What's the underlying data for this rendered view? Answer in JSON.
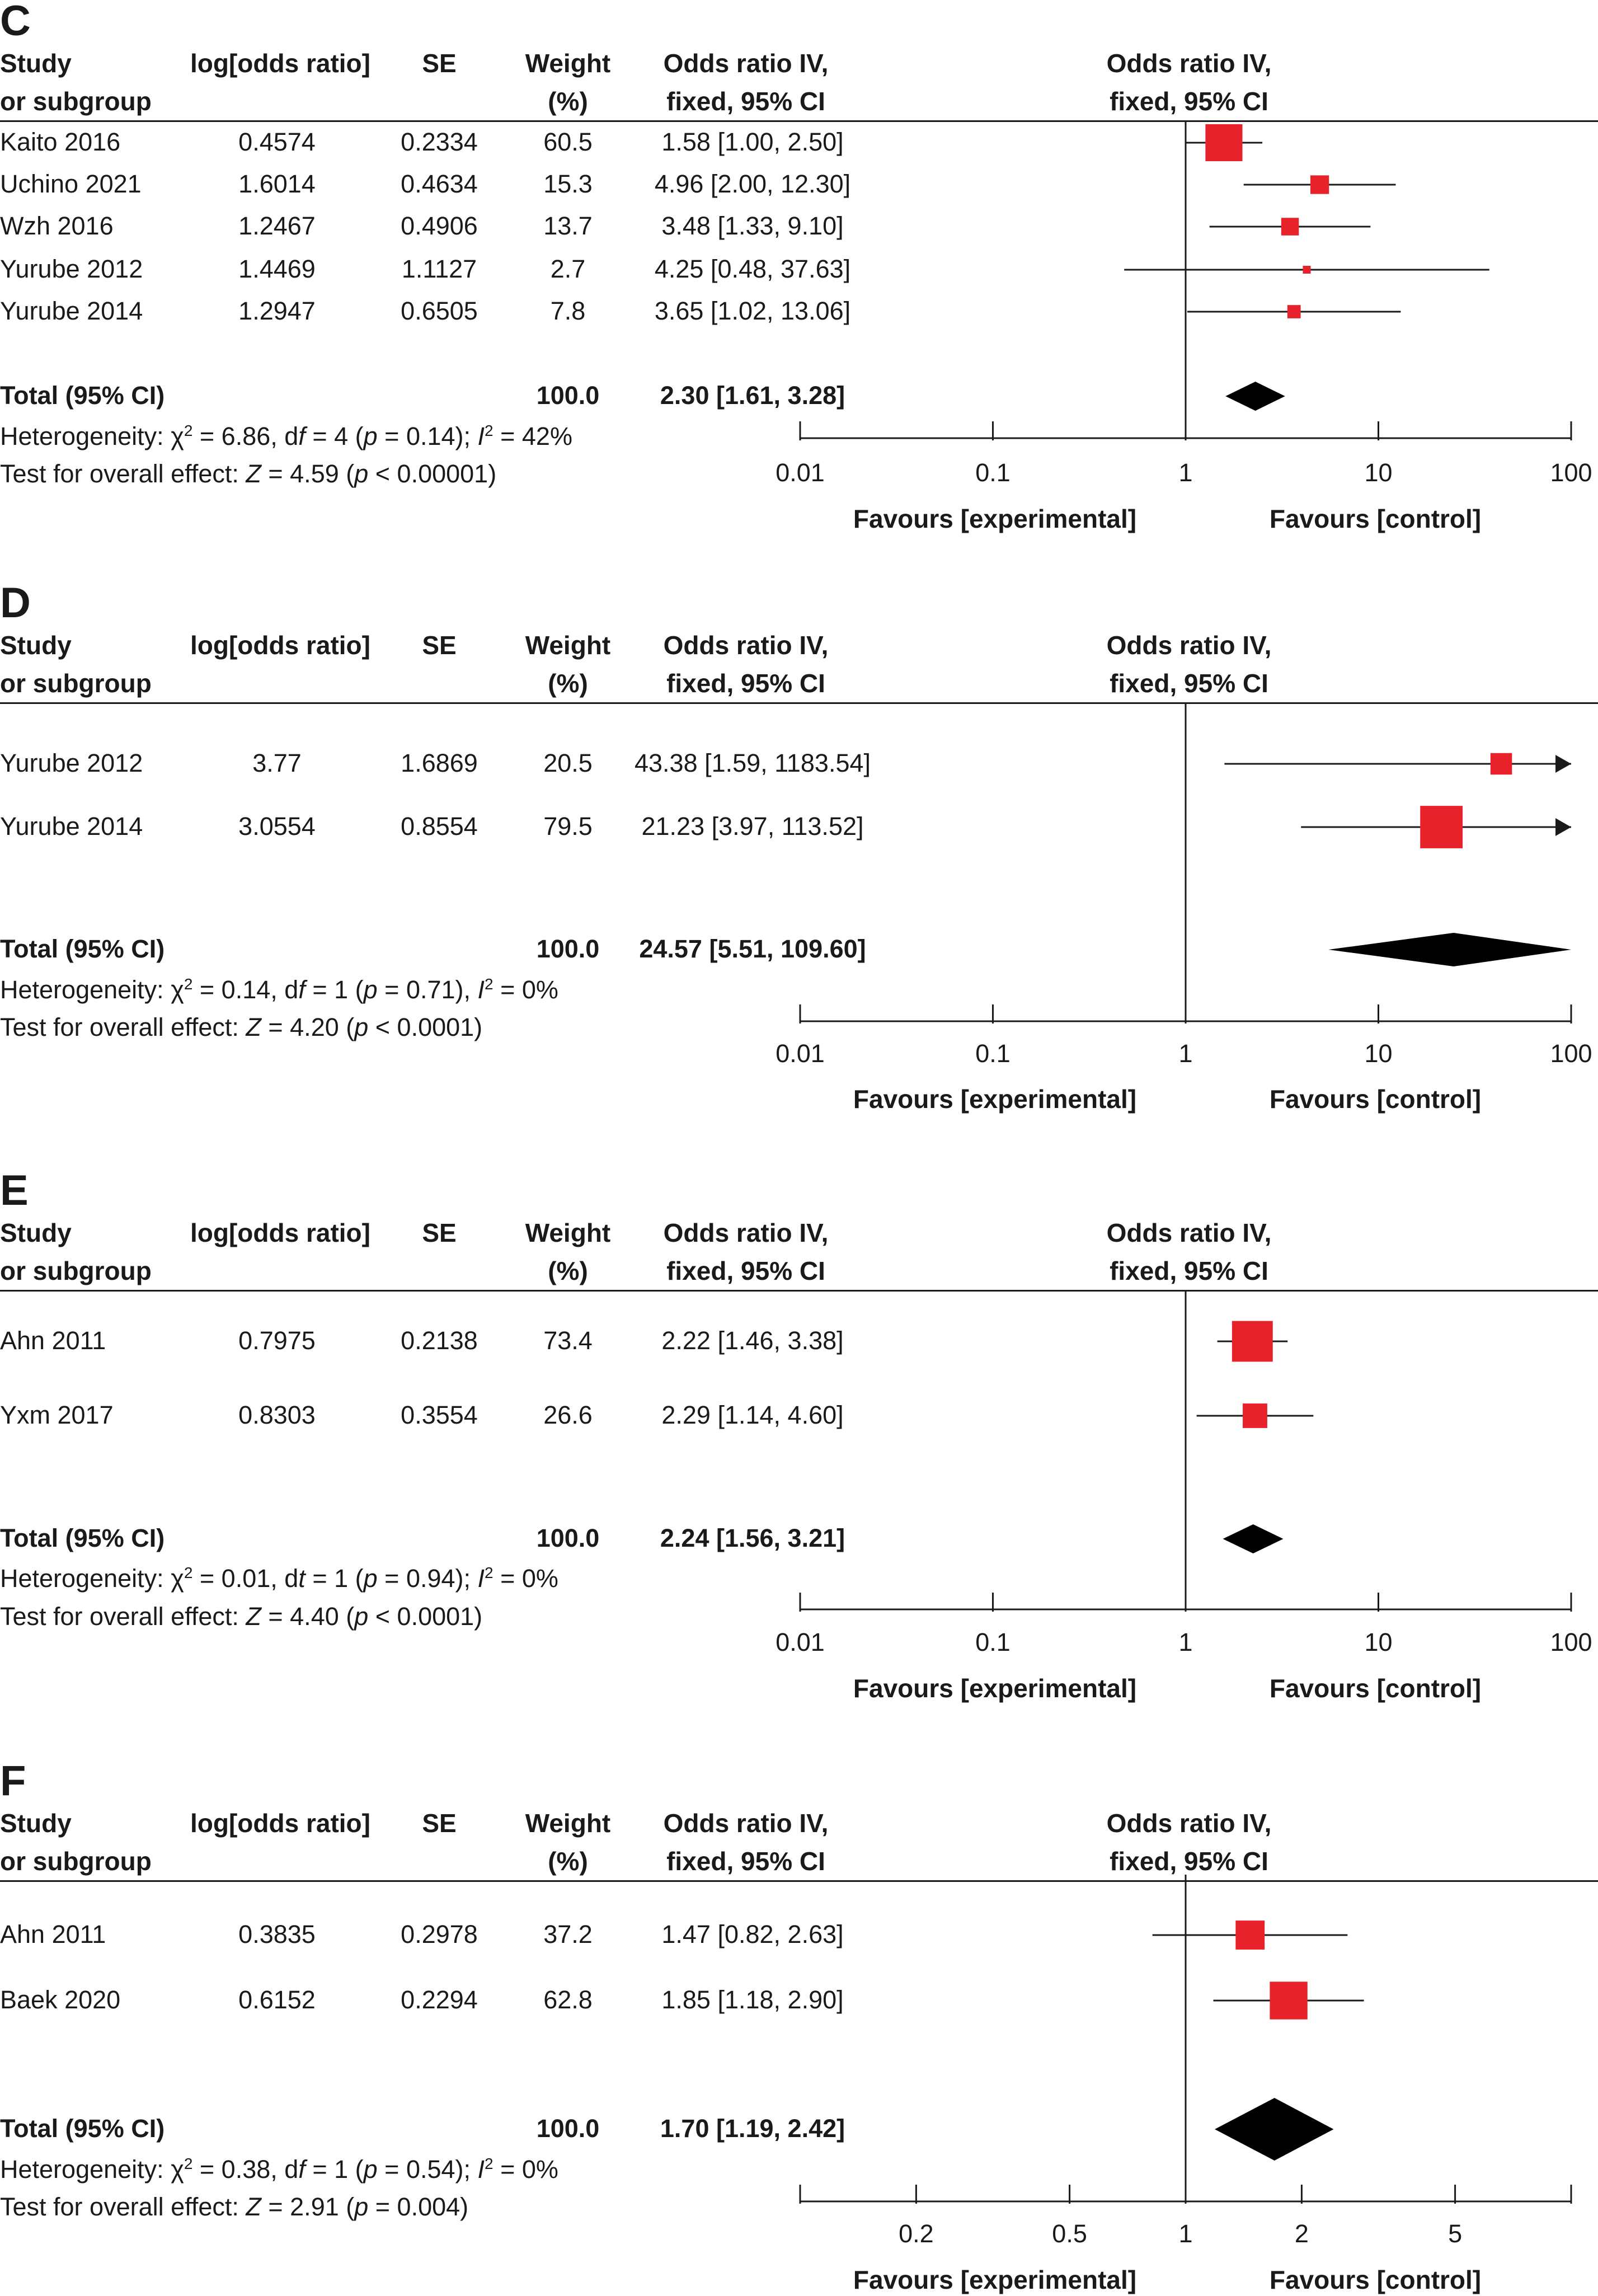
{
  "headers": {
    "study": [
      "Study",
      "or subgroup"
    ],
    "log_or": "log[odds ratio]",
    "se": "SE",
    "weight": [
      "Weight",
      "(%)"
    ],
    "or_text": [
      "Odds ratio IV,",
      "fixed, 95% CI"
    ],
    "or_plot": [
      "Odds ratio IV,",
      "fixed, 95% CI"
    ]
  },
  "favours": {
    "left": "Favours [experimental]",
    "right": "Favours [control]"
  },
  "colors": {
    "study_marker": "#e8222a",
    "diamond": "#000000",
    "line": "#1a1a1a"
  },
  "chart_data": [
    {
      "type": "forest",
      "panel": "C",
      "scale": "log",
      "xlim": [
        0.01,
        100
      ],
      "ticks": [
        0.01,
        0.1,
        1,
        10,
        100
      ],
      "tick_labels": [
        "0.01",
        "0.1",
        "1",
        "10",
        "100"
      ],
      "studies": [
        {
          "name": "Kaito 2016",
          "log_or": "0.4574",
          "se": "0.2334",
          "weight": "60.5",
          "ci_text": "1.58 [1.00, 2.50]",
          "or": 1.58,
          "lo": 1.0,
          "hi": 2.5,
          "w": 60.5
        },
        {
          "name": "Uchino 2021",
          "log_or": "1.6014",
          "se": "0.4634",
          "weight": "15.3",
          "ci_text": "4.96 [2.00, 12.30]",
          "or": 4.96,
          "lo": 2.0,
          "hi": 12.3,
          "w": 15.3
        },
        {
          "name": "Wzh 2016",
          "log_or": "1.2467",
          "se": "0.4906",
          "weight": "13.7",
          "ci_text": "3.48 [1.33, 9.10]",
          "or": 3.48,
          "lo": 1.33,
          "hi": 9.1,
          "w": 13.7
        },
        {
          "name": "Yurube 2012",
          "log_or": "1.4469",
          "se": "1.1127",
          "weight": "2.7",
          "ci_text": "4.25 [0.48, 37.63]",
          "or": 4.25,
          "lo": 0.48,
          "hi": 37.63,
          "w": 2.7
        },
        {
          "name": "Yurube 2014",
          "log_or": "1.2947",
          "se": "0.6505",
          "weight": "7.8",
          "ci_text": "3.65 [1.02, 13.06]",
          "or": 3.65,
          "lo": 1.02,
          "hi": 13.06,
          "w": 7.8
        }
      ],
      "total": {
        "label": "Total (95% CI)",
        "weight": "100.0",
        "ci_text": "2.30 [1.61, 3.28]",
        "or": 2.3,
        "lo": 1.61,
        "hi": 3.28
      },
      "heterogeneity": "Heterogeneity: χ² = 6.86, df = 4 (p = 0.14); I² = 42%",
      "overall": "Test for overall effect: Z = 4.59 (p < 0.00001)"
    },
    {
      "type": "forest",
      "panel": "D",
      "scale": "log",
      "xlim": [
        0.01,
        100
      ],
      "ticks": [
        0.01,
        0.1,
        1,
        10,
        100
      ],
      "tick_labels": [
        "0.01",
        "0.1",
        "1",
        "10",
        "100"
      ],
      "studies": [
        {
          "name": "Yurube 2012",
          "log_or": "3.77",
          "se": "1.6869",
          "weight": "20.5",
          "ci_text": "43.38 [1.59, 1183.54]",
          "or": 43.38,
          "lo": 1.59,
          "hi": 1183.54,
          "w": 20.5
        },
        {
          "name": "Yurube 2014",
          "log_or": "3.0554",
          "se": "0.8554",
          "weight": "79.5",
          "ci_text": "21.23 [3.97, 113.52]",
          "or": 21.23,
          "lo": 3.97,
          "hi": 113.52,
          "w": 79.5
        }
      ],
      "total": {
        "label": "Total (95% CI)",
        "weight": "100.0",
        "ci_text": "24.57 [5.51, 109.60]",
        "or": 24.57,
        "lo": 5.51,
        "hi": 109.6
      },
      "heterogeneity": "Heterogeneity: χ² = 0.14, df = 1 (p = 0.71), I² = 0%",
      "overall": "Test for overall effect: Z = 4.20 (p < 0.0001)"
    },
    {
      "type": "forest",
      "panel": "E",
      "scale": "log",
      "xlim": [
        0.01,
        100
      ],
      "ticks": [
        0.01,
        0.1,
        1,
        10,
        100
      ],
      "tick_labels": [
        "0.01",
        "0.1",
        "1",
        "10",
        "100"
      ],
      "studies": [
        {
          "name": "Ahn 2011",
          "log_or": "0.7975",
          "se": "0.2138",
          "weight": "73.4",
          "ci_text": "2.22 [1.46, 3.38]",
          "or": 2.22,
          "lo": 1.46,
          "hi": 3.38,
          "w": 73.4
        },
        {
          "name": "Yxm 2017",
          "log_or": "0.8303",
          "se": "0.3554",
          "weight": "26.6",
          "ci_text": "2.29 [1.14, 4.60]",
          "or": 2.29,
          "lo": 1.14,
          "hi": 4.6,
          "w": 26.6
        }
      ],
      "total": {
        "label": "Total (95% CI)",
        "weight": "100.0",
        "ci_text": "2.24 [1.56, 3.21]",
        "or": 2.24,
        "lo": 1.56,
        "hi": 3.21
      },
      "heterogeneity": "Heterogeneity: χ² = 0.01, dt = 1 (p = 0.94); I² = 0%",
      "overall": "Test for overall effect: Z = 4.40 (p < 0.0001)"
    },
    {
      "type": "forest",
      "panel": "F",
      "scale": "log",
      "xlim": [
        0.1,
        10
      ],
      "ticks": [
        0.2,
        0.5,
        1,
        2,
        5
      ],
      "tick_labels": [
        "0.2",
        "0.5",
        "1",
        "2",
        "5"
      ],
      "studies": [
        {
          "name": "Ahn 2011",
          "log_or": "0.3835",
          "se": "0.2978",
          "weight": "37.2",
          "ci_text": "1.47 [0.82, 2.63]",
          "or": 1.47,
          "lo": 0.82,
          "hi": 2.63,
          "w": 37.2
        },
        {
          "name": "Baek 2020",
          "log_or": "0.6152",
          "se": "0.2294",
          "weight": "62.8",
          "ci_text": "1.85 [1.18, 2.90]",
          "or": 1.85,
          "lo": 1.18,
          "hi": 2.9,
          "w": 62.8
        }
      ],
      "total": {
        "label": "Total (95% CI)",
        "weight": "100.0",
        "ci_text": "1.70 [1.19, 2.42]",
        "or": 1.7,
        "lo": 1.19,
        "hi": 2.42
      },
      "heterogeneity": "Heterogeneity: χ² = 0.38, df = 1 (p = 0.54); I² = 0%",
      "overall": "Test for overall effect: Z = 2.91 (p = 0.004)"
    }
  ]
}
